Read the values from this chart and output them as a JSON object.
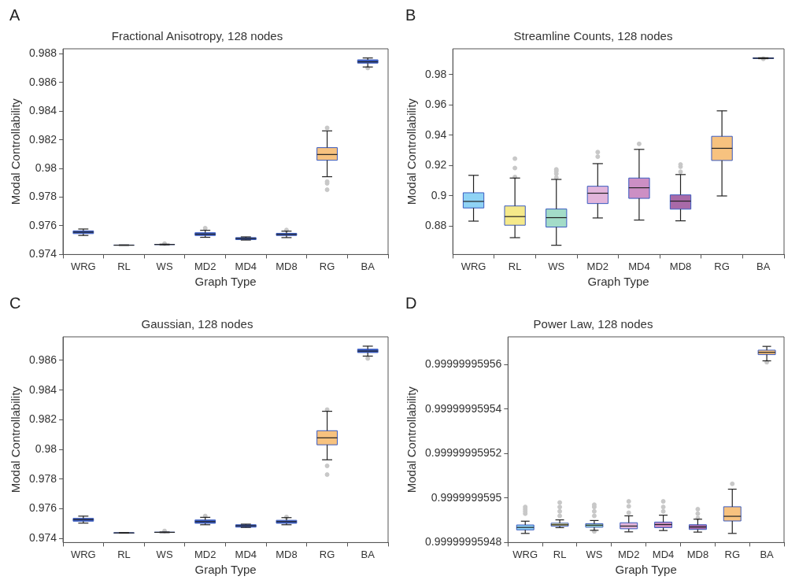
{
  "chart_data": [
    {
      "type": "box",
      "annotations": [
        "A"
      ],
      "title": "Fractional Anisotropy, 128 nodes",
      "xlabel": "Graph Type",
      "ylabel": "Modal Controllability",
      "categories": [
        "WRG",
        "RL",
        "WS",
        "MD2",
        "MD4",
        "MD8",
        "RG",
        "BA"
      ],
      "colors": [
        "#3a5bbf",
        "#3a5bbf",
        "#3a5bbf",
        "#3a5bbf",
        "#3a5bbf",
        "#3a5bbf",
        "#f7c27f",
        "#3a5bbf"
      ],
      "ylim": [
        0.974,
        0.98836
      ],
      "yticks": [
        0.974,
        0.976,
        0.978,
        0.98,
        0.982,
        0.984,
        0.986,
        0.988
      ],
      "grid": false,
      "legend": false,
      "boxes": [
        {
          "low": 0.97533,
          "q1": 0.97546,
          "median": 0.97556,
          "q3": 0.97565,
          "high": 0.97578
        },
        {
          "low": 0.97464,
          "q1": 0.97465,
          "median": 0.97465,
          "q3": 0.97466,
          "high": 0.97467
        },
        {
          "low": 0.97468,
          "q1": 0.97469,
          "median": 0.9747,
          "q3": 0.97471,
          "high": 0.97472,
          "outliers": [
            0.97476
          ]
        },
        {
          "low": 0.9752,
          "q1": 0.97533,
          "median": 0.97542,
          "q3": 0.97552,
          "high": 0.97569,
          "outliers": [
            0.97584
          ]
        },
        {
          "low": 0.97501,
          "q1": 0.97504,
          "median": 0.97512,
          "q3": 0.97518,
          "high": 0.97523
        },
        {
          "low": 0.97518,
          "q1": 0.97533,
          "median": 0.9754,
          "q3": 0.97548,
          "high": 0.97563,
          "outliers": [
            0.97571
          ]
        },
        {
          "low": 0.97943,
          "q1": 0.98058,
          "median": 0.98098,
          "q3": 0.98146,
          "high": 0.98263,
          "outliers": [
            0.98284,
            0.97909,
            0.97897,
            0.97852
          ]
        },
        {
          "low": 0.98709,
          "q1": 0.98736,
          "median": 0.98745,
          "q3": 0.98759,
          "high": 0.98772,
          "outliers": [
            0.98702
          ]
        }
      ]
    },
    {
      "type": "box",
      "annotations": [
        "B"
      ],
      "title": "Streamline Counts, 128 nodes",
      "xlabel": "Graph Type",
      "ylabel": "Modal Controllability",
      "categories": [
        "WRG",
        "RL",
        "WS",
        "MD2",
        "MD4",
        "MD8",
        "RG",
        "BA"
      ],
      "colors": [
        "#8fd3f5",
        "#f5e98a",
        "#a3dcc8",
        "#e2b5db",
        "#cc8fc4",
        "#a86aa8",
        "#f7c27f",
        "#3a5bbf"
      ],
      "ylim": [
        0.8614,
        0.997
      ],
      "yticks": [
        0.88,
        0.9,
        0.92,
        0.94,
        0.96,
        0.98
      ],
      "grid": false,
      "legend": false,
      "boxes": [
        {
          "low": 0.8834,
          "q1": 0.8921,
          "median": 0.8964,
          "q3": 0.9021,
          "high": 0.9136
        },
        {
          "low": 0.8725,
          "q1": 0.8807,
          "median": 0.8864,
          "q3": 0.8934,
          "high": 0.9118,
          "outliers": [
            0.9125,
            0.9184,
            0.9246
          ]
        },
        {
          "low": 0.8675,
          "q1": 0.8795,
          "median": 0.8857,
          "q3": 0.8914,
          "high": 0.9109,
          "outliers": [
            0.9121,
            0.9146,
            0.9164,
            0.9175
          ]
        },
        {
          "low": 0.8855,
          "q1": 0.895,
          "median": 0.9018,
          "q3": 0.9064,
          "high": 0.9213,
          "outliers": [
            0.9259,
            0.9289
          ]
        },
        {
          "low": 0.8841,
          "q1": 0.8984,
          "median": 0.9054,
          "q3": 0.9118,
          "high": 0.9307,
          "outliers": [
            0.9343
          ]
        },
        {
          "low": 0.8836,
          "q1": 0.8913,
          "median": 0.8966,
          "q3": 0.9007,
          "high": 0.9141,
          "outliers": [
            0.9159,
            0.9193,
            0.9207
          ]
        },
        {
          "low": 0.9,
          "q1": 0.9234,
          "median": 0.9314,
          "q3": 0.9393,
          "high": 0.9561
        },
        {
          "low": 0.9905,
          "q1": 0.9906,
          "median": 0.9908,
          "q3": 0.991,
          "high": 0.9911,
          "outliers": [
            0.9904
          ]
        }
      ]
    },
    {
      "type": "box",
      "annotations": [
        "C"
      ],
      "title": "Gaussian, 128 nodes",
      "xlabel": "Graph Type",
      "ylabel": "Modal Controllability",
      "categories": [
        "WRG",
        "RL",
        "WS",
        "MD2",
        "MD4",
        "MD8",
        "RG",
        "BA"
      ],
      "colors": [
        "#3a5bbf",
        "#3a5bbf",
        "#3a5bbf",
        "#3a5bbf",
        "#3a5bbf",
        "#3a5bbf",
        "#f7c27f",
        "#3a5bbf"
      ],
      "ylim": [
        0.97372,
        0.98759
      ],
      "yticks": [
        0.974,
        0.976,
        0.978,
        0.98,
        0.982,
        0.984,
        0.986
      ],
      "grid": false,
      "legend": false,
      "boxes": [
        {
          "low": 0.97503,
          "q1": 0.97516,
          "median": 0.97527,
          "q3": 0.97535,
          "high": 0.9755
        },
        {
          "low": 0.97435,
          "q1": 0.97436,
          "median": 0.97437,
          "q3": 0.97438,
          "high": 0.97439
        },
        {
          "low": 0.97439,
          "q1": 0.9744,
          "median": 0.97441,
          "q3": 0.97442,
          "high": 0.97443,
          "outliers": [
            0.9745
          ]
        },
        {
          "low": 0.97492,
          "q1": 0.97502,
          "median": 0.97513,
          "q3": 0.97524,
          "high": 0.97542,
          "outliers": [
            0.97551
          ]
        },
        {
          "low": 0.97474,
          "q1": 0.97476,
          "median": 0.97485,
          "q3": 0.97492,
          "high": 0.97496
        },
        {
          "low": 0.97492,
          "q1": 0.97502,
          "median": 0.97513,
          "q3": 0.97522,
          "high": 0.9754,
          "outliers": [
            0.97544
          ]
        },
        {
          "low": 0.9793,
          "q1": 0.98031,
          "median": 0.98078,
          "q3": 0.98126,
          "high": 0.98257,
          "outliers": [
            0.98268,
            0.97889,
            0.9783
          ]
        },
        {
          "low": 0.98629,
          "q1": 0.98653,
          "median": 0.98663,
          "q3": 0.98676,
          "high": 0.98696,
          "outliers": [
            0.98613
          ]
        }
      ]
    },
    {
      "type": "box",
      "annotations": [
        "D"
      ],
      "title": "Power Law, 128 nodes",
      "xlabel": "Graph Type",
      "ylabel": "Modal Controllability",
      "categories": [
        "WRG",
        "RL",
        "WS",
        "MD2",
        "MD4",
        "MD8",
        "RG",
        "BA"
      ],
      "colors": [
        "#8fd3f5",
        "#f5e98a",
        "#a3dcc8",
        "#e2b5db",
        "#cc8fc4",
        "#a86aa8",
        "#f7c27f",
        "#f7c27f"
      ],
      "ylim": [
        0.99999995948,
        0.9999999595725
      ],
      "yticks": [
        {
          "value": 0.99999995948,
          "label": "0.99999995948"
        },
        {
          "value": 0.9999999595,
          "label": "0.9999999595"
        },
        {
          "value": 0.99999995952,
          "label": "0.99999995952"
        },
        {
          "value": 0.99999995954,
          "label": "0.99999995954"
        },
        {
          "value": 0.99999995956,
          "label": "0.99999995956"
        }
      ],
      "grid": false,
      "legend": false,
      "boxes": [
        {
          "low": 0.9999999594841,
          "q1": 0.9999999594857,
          "median": 0.9999999594868,
          "q3": 0.9999999594879,
          "high": 0.9999999594896,
          "outliers": [
            0.999999959493,
            0.999999959494,
            0.999999959495,
            0.999999959496
          ]
        },
        {
          "low": 0.9999999594867,
          "q1": 0.9999999594874,
          "median": 0.999999959488,
          "q3": 0.9999999594887,
          "high": 0.9999999594902,
          "outliers": [
            0.999999959492,
            0.999999959494,
            0.999999959496,
            0.999999959498
          ]
        },
        {
          "low": 0.9999999594855,
          "q1": 0.9999999594869,
          "median": 0.9999999594878,
          "q3": 0.9999999594885,
          "high": 0.9999999594899,
          "outliers": [
            0.999999959492,
            0.999999959494,
            0.999999959496,
            0.999999959497,
            0.999999959485
          ]
        },
        {
          "low": 0.9999999594848,
          "q1": 0.9999999594862,
          "median": 0.9999999594874,
          "q3": 0.9999999594889,
          "high": 0.999999959492,
          "outliers": [
            0.9999999594934,
            0.9999999594963,
            0.9999999594985
          ]
        },
        {
          "low": 0.9999999594854,
          "q1": 0.9999999594867,
          "median": 0.9999999594881,
          "q3": 0.9999999594892,
          "high": 0.9999999594923,
          "outliers": [
            0.999999959494,
            0.999999959496,
            0.9999999594985
          ]
        },
        {
          "low": 0.9999999594847,
          "q1": 0.9999999594859,
          "median": 0.999999959487,
          "q3": 0.999999959488,
          "high": 0.9999999594905,
          "outliers": [
            0.999999959491,
            0.999999959493,
            0.999999959495
          ]
        },
        {
          "low": 0.9999999594841,
          "q1": 0.9999999594897,
          "median": 0.9999999594918,
          "q3": 0.9999999594961,
          "high": 0.999999959504,
          "outliers": [
            0.9999999595064
          ]
        },
        {
          "low": 0.9999999595617,
          "q1": 0.9999999595645,
          "median": 0.9999999595655,
          "q3": 0.9999999595665,
          "high": 0.9999999595682,
          "outliers": [
            0.9999999595611
          ]
        }
      ]
    }
  ]
}
